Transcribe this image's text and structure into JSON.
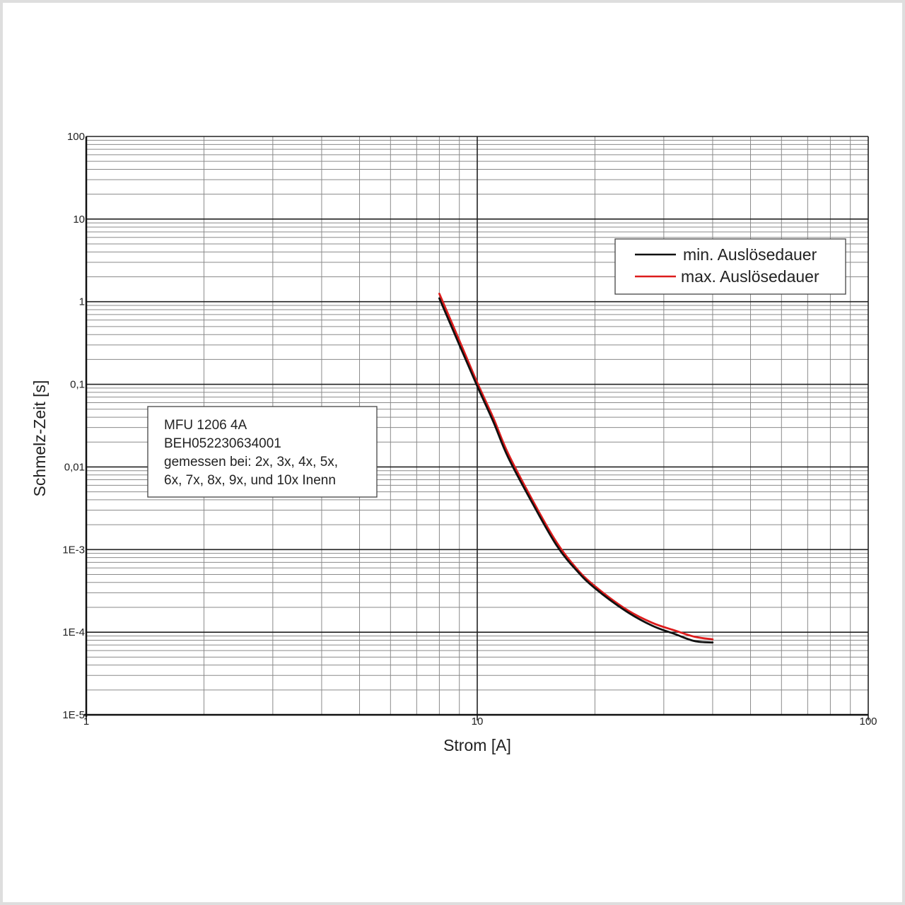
{
  "chart_data": {
    "type": "line",
    "xlabel": "Strom [A]",
    "ylabel": "Schmelz-Zeit [s]",
    "x_scale": "log",
    "y_scale": "log",
    "xlim": [
      1,
      100
    ],
    "ylim": [
      1e-05,
      100
    ],
    "grid": true,
    "legend_position": "top-right",
    "x_tick_labels": [
      {
        "value": 1,
        "label": "1"
      },
      {
        "value": 10,
        "label": "10"
      },
      {
        "value": 100,
        "label": "100"
      }
    ],
    "y_tick_labels": [
      {
        "value": 100,
        "label": "100"
      },
      {
        "value": 10,
        "label": "10"
      },
      {
        "value": 1,
        "label": "1"
      },
      {
        "value": 0.1,
        "label": "0,1"
      },
      {
        "value": 0.01,
        "label": "0,01"
      },
      {
        "value": 0.001,
        "label": "1E-3"
      },
      {
        "value": 0.0001,
        "label": "1E-4"
      },
      {
        "value": 1e-05,
        "label": "1E-5"
      }
    ],
    "series": [
      {
        "name": "min. Auslösedauer",
        "color": "#111111",
        "x": [
          8,
          9,
          10,
          11,
          12,
          14,
          16,
          18,
          20,
          24,
          28,
          32,
          36,
          40
        ],
        "y": [
          1.1,
          0.3,
          0.095,
          0.035,
          0.013,
          0.0033,
          0.0011,
          0.00055,
          0.00034,
          0.00018,
          0.00012,
          9.5e-05,
          7.8e-05,
          7.5e-05
        ]
      },
      {
        "name": "max. Auslösedauer",
        "color": "#dd1c1c",
        "x": [
          8,
          9,
          10,
          11,
          12,
          14,
          16,
          18,
          20,
          24,
          28,
          32,
          36,
          40
        ],
        "y": [
          1.25,
          0.34,
          0.105,
          0.039,
          0.0145,
          0.0036,
          0.0012,
          0.00058,
          0.00036,
          0.00019,
          0.00013,
          0.000105,
          8.8e-05,
          8.2e-05
        ]
      }
    ]
  },
  "info_box": {
    "lines": [
      "MFU 1206 4A",
      "BEH052230634001",
      "gemessen bei: 2x, 3x, 4x, 5x,",
      "6x, 7x, 8x, 9x, und 10x Inenn"
    ]
  }
}
